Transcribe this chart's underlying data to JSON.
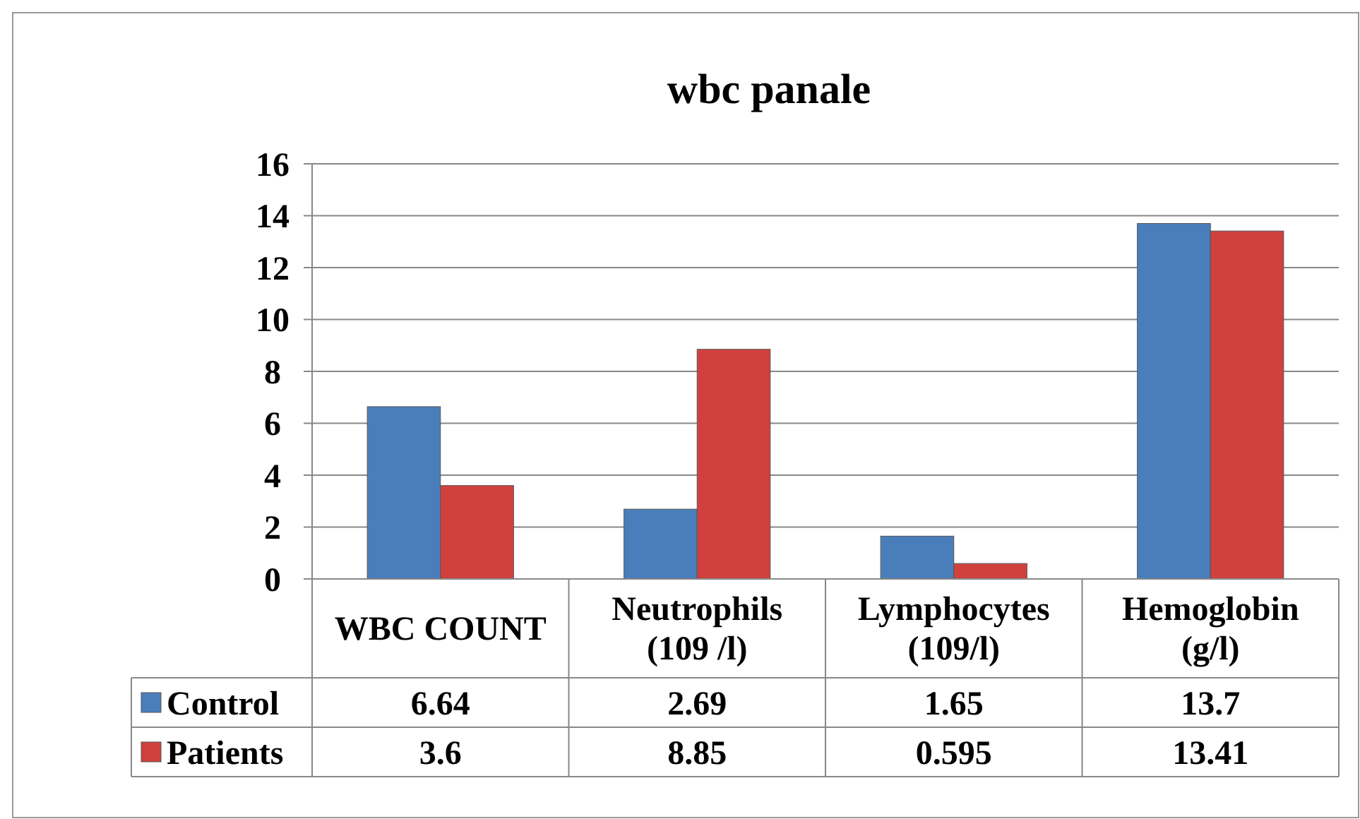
{
  "chart_data": {
    "type": "bar",
    "title": "wbc panale",
    "categories": [
      "WBC COUNT",
      "Neutrophils (109 /l)",
      "Lymphocytes (109/l)",
      "Hemoglobin (g/l)"
    ],
    "series": [
      {
        "name": "Control",
        "color": "#4a7ebb",
        "values": [
          6.64,
          2.69,
          1.65,
          13.7
        ]
      },
      {
        "name": "Patients",
        "color": "#d0413d",
        "values": [
          3.6,
          8.85,
          0.595,
          13.41
        ]
      }
    ],
    "ylim": [
      0,
      16
    ],
    "yticks": [
      0,
      2,
      4,
      6,
      8,
      10,
      12,
      14,
      16
    ],
    "grid": "y",
    "data_labels": true,
    "legend": "bottom left"
  }
}
